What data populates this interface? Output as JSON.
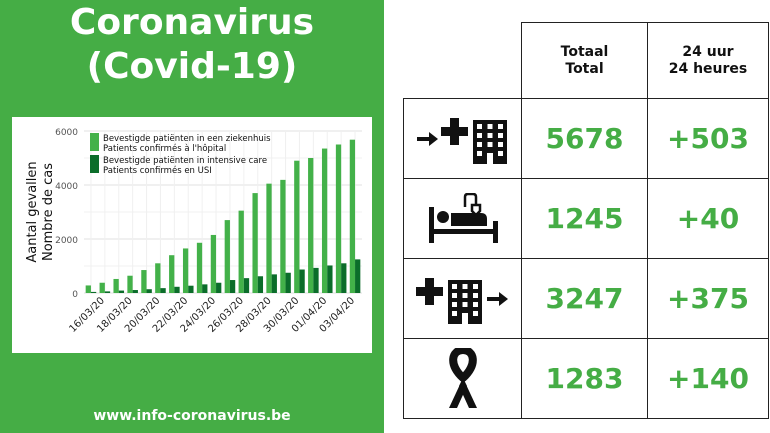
{
  "header": {
    "title_line1": "Coronavirus",
    "title_line2": "(Covid-19)"
  },
  "footer": {
    "website": "www.info-coronavirus.be"
  },
  "colors": {
    "panel_green": "#45ad45",
    "number_green": "#45ad45",
    "light_bar": "#43b149",
    "dark_bar": "#0b6d2a"
  },
  "chart_data": {
    "type": "bar",
    "ylabel_lines": [
      "Aantal gevallen",
      "Nombre de cas"
    ],
    "ylim": [
      0,
      6000
    ],
    "yticks": [
      0,
      2000,
      4000,
      6000
    ],
    "xtick_labels": [
      "16/03/20",
      "18/03/20",
      "20/03/20",
      "22/03/20",
      "24/03/20",
      "26/03/20",
      "28/03/20",
      "30/03/20",
      "01/04/20",
      "03/04/20"
    ],
    "categories": [
      "15/03/20",
      "16/03/20",
      "17/03/20",
      "18/03/20",
      "19/03/20",
      "20/03/20",
      "21/03/20",
      "22/03/20",
      "23/03/20",
      "24/03/20",
      "25/03/20",
      "26/03/20",
      "27/03/20",
      "28/03/20",
      "29/03/20",
      "30/03/20",
      "31/03/20",
      "01/04/20",
      "02/04/20",
      "03/04/20"
    ],
    "series": [
      {
        "name": "Bevestigde patiënten in een ziekenhuis\nPatients confirmés à l'hôpital",
        "color": "#43b149",
        "values": [
          280,
          380,
          520,
          640,
          850,
          1100,
          1400,
          1650,
          1860,
          2150,
          2700,
          3050,
          3700,
          4050,
          4190,
          4900,
          5000,
          5350,
          5500,
          5678
        ]
      },
      {
        "name": "Bevestigde patiënten in intensive care\nPatients confirmés en USI",
        "color": "#0b6d2a",
        "values": [
          40,
          60,
          90,
          110,
          140,
          180,
          230,
          270,
          320,
          380,
          480,
          550,
          620,
          690,
          750,
          870,
          930,
          1020,
          1100,
          1245
        ]
      }
    ]
  },
  "table": {
    "headers": {
      "total": "Totaal\nTotal",
      "last24": "24 uur\n24 heures"
    },
    "rows": [
      {
        "icon": "hospital-admission-icon",
        "total": "5678",
        "change": "+503"
      },
      {
        "icon": "hospital-bed-icon",
        "total": "1245",
        "change": "+40"
      },
      {
        "icon": "hospital-discharge-icon",
        "total": "3247",
        "change": "+375"
      },
      {
        "icon": "mourning-ribbon-icon",
        "total": "1283",
        "change": "+140"
      }
    ]
  }
}
